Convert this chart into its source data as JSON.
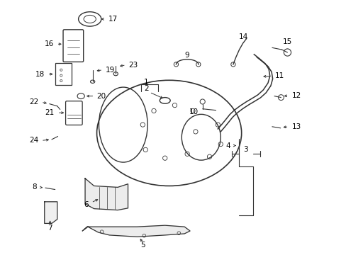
{
  "background_color": "#ffffff",
  "line_color": "#333333",
  "label_color": "#000000"
}
